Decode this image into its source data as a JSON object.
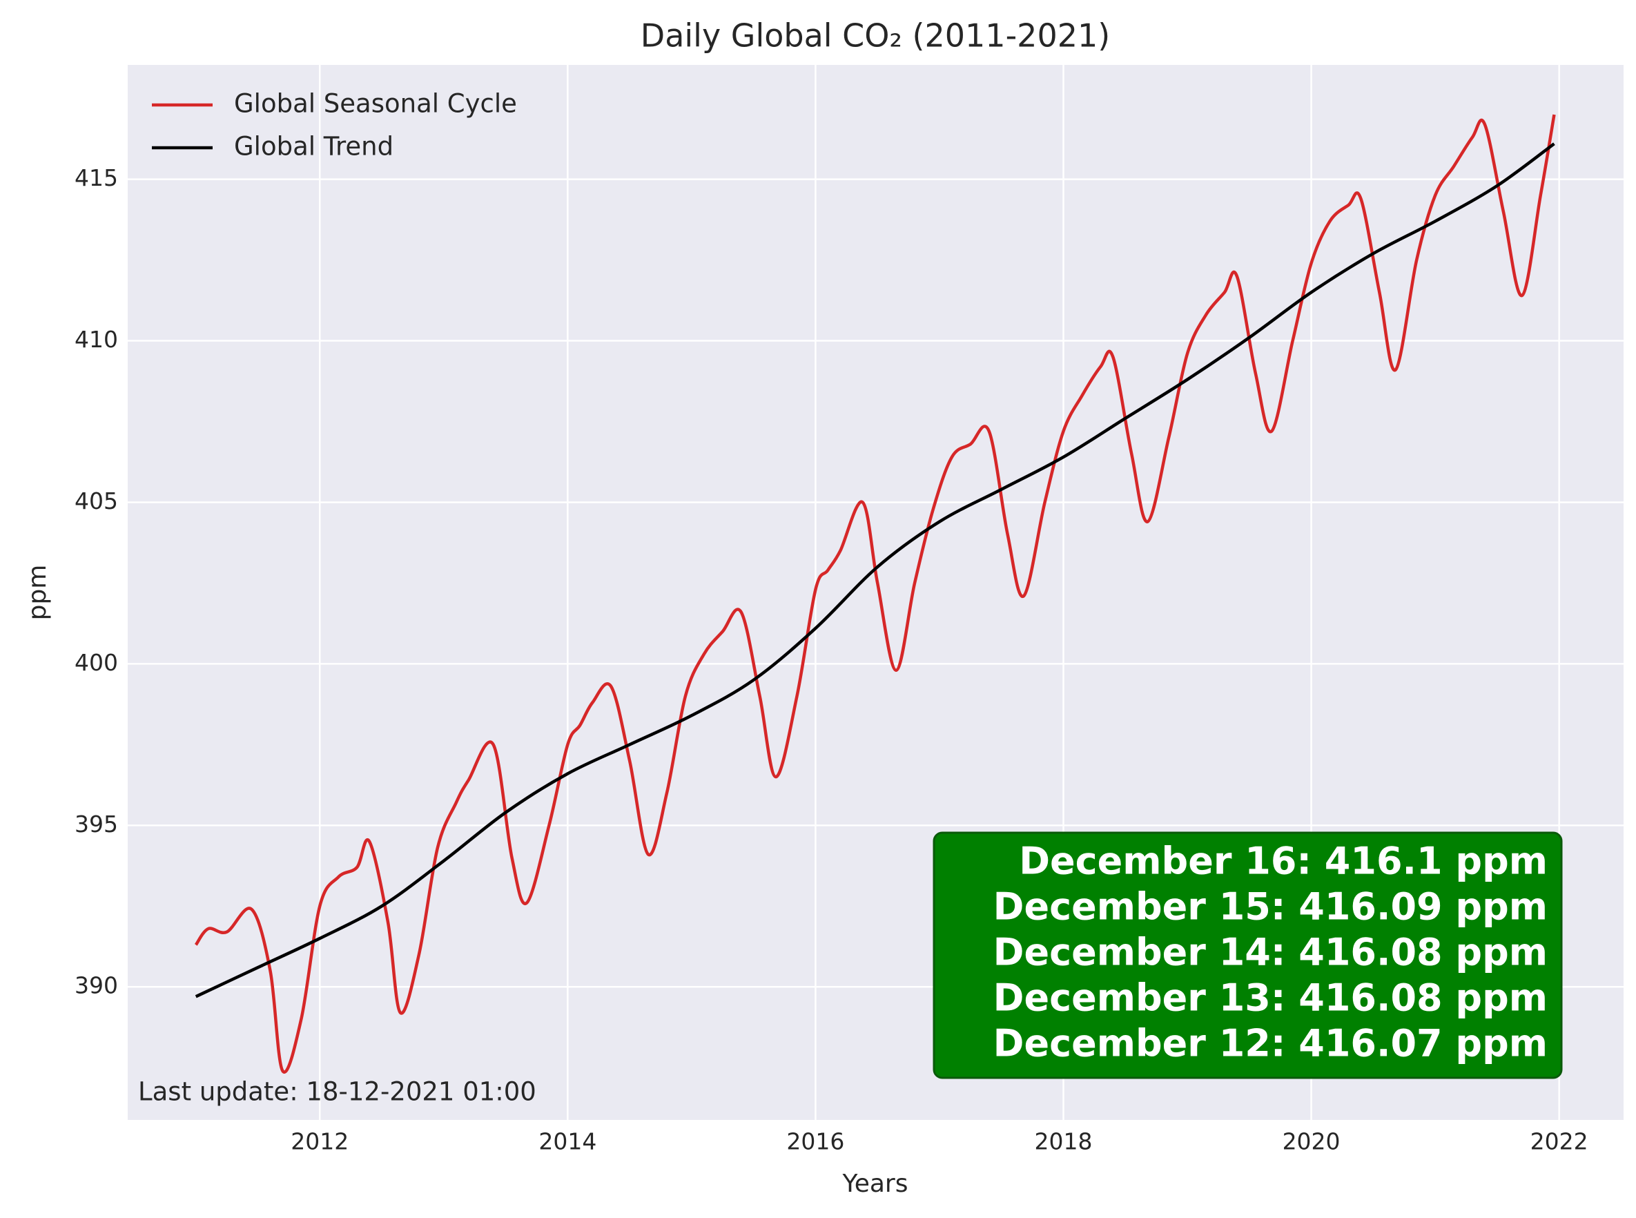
{
  "chart_data": {
    "type": "line",
    "title": "Daily Global CO₂ (2011-2021)",
    "x_label": "Years",
    "y_label": "ppm",
    "xlim": [
      2010.45,
      2022.52
    ],
    "ylim": [
      385.88,
      418.54
    ],
    "xticks": [
      2012,
      2014,
      2016,
      2018,
      2020,
      2022
    ],
    "yticks": [
      390,
      395,
      400,
      405,
      410,
      415
    ],
    "grid": true,
    "legend": "upper left",
    "background": "#eaeaf2",
    "series": [
      {
        "name": "Global Seasonal Cycle",
        "color": "#d62728",
        "x": [
          2011.0,
          2011.1,
          2011.25,
          2011.45,
          2011.6,
          2011.7,
          2011.85,
          2012.0,
          2012.15,
          2012.3,
          2012.4,
          2012.55,
          2012.65,
          2012.8,
          2012.95,
          2013.1,
          2013.2,
          2013.4,
          2013.55,
          2013.67,
          2013.85,
          2014.0,
          2014.1,
          2014.2,
          2014.35,
          2014.5,
          2014.65,
          2014.8,
          2014.95,
          2015.1,
          2015.25,
          2015.4,
          2015.55,
          2015.68,
          2015.85,
          2016.0,
          2016.1,
          2016.2,
          2016.38,
          2016.5,
          2016.65,
          2016.8,
          2016.95,
          2017.1,
          2017.25,
          2017.4,
          2017.55,
          2017.68,
          2017.85,
          2018.0,
          2018.15,
          2018.3,
          2018.4,
          2018.55,
          2018.68,
          2018.85,
          2019.0,
          2019.15,
          2019.3,
          2019.4,
          2019.55,
          2019.68,
          2019.85,
          2020.0,
          2020.15,
          2020.3,
          2020.4,
          2020.55,
          2020.68,
          2020.85,
          2021.0,
          2021.15,
          2021.3,
          2021.4,
          2021.55,
          2021.7,
          2021.85,
          2021.96
        ],
        "values": [
          391.3,
          391.8,
          391.7,
          392.4,
          390.5,
          387.4,
          389.0,
          392.5,
          393.4,
          393.7,
          394.5,
          392.0,
          389.2,
          391.0,
          394.3,
          395.7,
          396.4,
          397.5,
          394.0,
          392.6,
          395.0,
          397.5,
          398.1,
          398.8,
          399.3,
          397.0,
          394.1,
          396.0,
          399.0,
          400.3,
          401.0,
          401.6,
          399.0,
          396.5,
          399.0,
          402.3,
          402.9,
          403.5,
          405.0,
          402.5,
          399.8,
          402.5,
          404.8,
          406.4,
          406.8,
          407.2,
          404.0,
          402.1,
          405.0,
          407.2,
          408.3,
          409.2,
          409.5,
          406.5,
          404.4,
          407.0,
          409.6,
          410.8,
          411.5,
          412.0,
          409.0,
          407.2,
          410.0,
          412.4,
          413.7,
          414.2,
          414.4,
          411.5,
          409.1,
          412.5,
          414.5,
          415.4,
          416.3,
          416.7,
          414.0,
          411.4,
          414.5,
          417.0
        ]
      },
      {
        "name": "Global Trend",
        "color": "#000000",
        "x": [
          2011.0,
          2011.5,
          2012.0,
          2012.5,
          2013.0,
          2013.5,
          2014.0,
          2014.5,
          2015.0,
          2015.5,
          2016.0,
          2016.5,
          2017.0,
          2017.5,
          2018.0,
          2018.5,
          2019.0,
          2019.5,
          2020.0,
          2020.5,
          2021.0,
          2021.5,
          2021.96
        ],
        "values": [
          389.7,
          390.6,
          391.5,
          392.5,
          393.9,
          395.4,
          396.6,
          397.5,
          398.4,
          399.5,
          401.1,
          403.0,
          404.4,
          405.4,
          406.4,
          407.6,
          408.8,
          410.1,
          411.5,
          412.7,
          413.7,
          414.8,
          416.1
        ]
      }
    ],
    "annotations": [
      "Last update: 18-12-2021 01:00"
    ],
    "info_box": {
      "color": "#008000",
      "lines": [
        "December 16: 416.1 ppm",
        "December 15: 416.09 ppm",
        "December 14: 416.08 ppm",
        "December 13: 416.08 ppm",
        "December 12: 416.07 ppm"
      ]
    }
  }
}
